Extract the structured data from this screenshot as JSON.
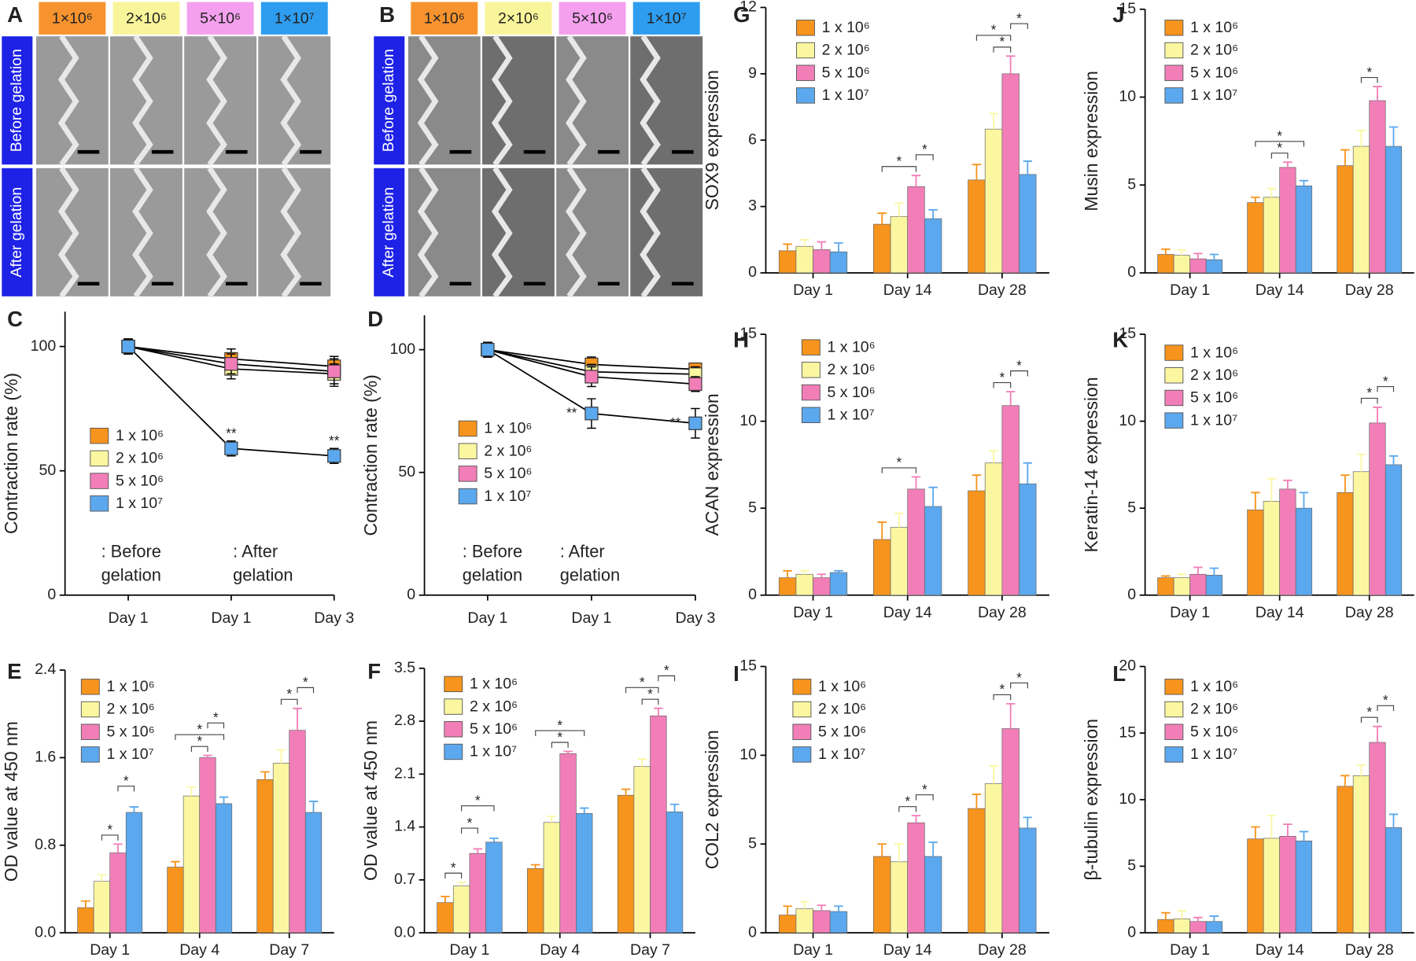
{
  "photo_panels": [
    {
      "panel": "A",
      "columns": [
        {
          "label": "1×10⁶",
          "color": "#f7932e"
        },
        {
          "label": "2×10⁶",
          "color": "#f9f59a"
        },
        {
          "label": "5×10⁶",
          "color": "#f4a0ee"
        },
        {
          "label": "1×10⁷",
          "color": "#2e9df0"
        }
      ],
      "row_labels": [
        "Before gelation",
        "After gelation"
      ]
    },
    {
      "panel": "B",
      "columns": [
        {
          "label": "1×10⁶",
          "color": "#f7932e"
        },
        {
          "label": "2×10⁶",
          "color": "#f9f59a"
        },
        {
          "label": "5×10⁶",
          "color": "#f4a0ee"
        },
        {
          "label": "1×10⁷",
          "color": "#2e9df0"
        }
      ],
      "row_labels": [
        "Before gelation",
        "After gelation"
      ]
    }
  ],
  "chart_data": [
    {
      "type": "line",
      "panel": "C",
      "y_label": "Contraction rate (%)",
      "categories": [
        "Day 1",
        "Day 1",
        "Day 3"
      ],
      "ylim": [
        0,
        114
      ],
      "yticks": [
        0,
        50,
        100
      ],
      "series": [
        {
          "name": "1 x 10⁶",
          "color": "#f7941d",
          "values": [
            100,
            95,
            92
          ],
          "errors": [
            3,
            4,
            3
          ]
        },
        {
          "name": "2 x 10⁶",
          "color": "#fbf7a1",
          "values": [
            100,
            91,
            89
          ],
          "errors": [
            3,
            4,
            4
          ]
        },
        {
          "name": "5 x 10⁶",
          "color": "#f27eb8",
          "values": [
            100,
            93,
            90
          ],
          "errors": [
            3,
            4,
            6
          ]
        },
        {
          "name": "1 x 10⁷",
          "color": "#5ba8ee",
          "values": [
            100,
            59,
            56
          ],
          "errors": [
            3,
            3,
            3
          ]
        }
      ],
      "markers": [
        "**",
        "**"
      ],
      "annotations": [
        ": Before",
        "gelation",
        ": After",
        "gelation"
      ]
    },
    {
      "type": "line",
      "panel": "D",
      "y_label": "Contraction rate (%)",
      "categories": [
        "Day 1",
        "Day 1",
        "Day 3"
      ],
      "ylim": [
        0,
        114
      ],
      "yticks": [
        0,
        50,
        100
      ],
      "series": [
        {
          "name": "1 x 10⁶",
          "color": "#f7941d",
          "values": [
            100,
            94,
            92
          ],
          "errors": [
            3,
            3,
            2
          ]
        },
        {
          "name": "2 x 10⁶",
          "color": "#fbf7a1",
          "values": [
            100,
            91,
            90
          ],
          "errors": [
            3,
            3,
            3
          ]
        },
        {
          "name": "5 x 10⁶",
          "color": "#f27eb8",
          "values": [
            100,
            89,
            86
          ],
          "errors": [
            3,
            4,
            3
          ]
        },
        {
          "name": "1 x 10⁷",
          "color": "#5ba8ee",
          "values": [
            100,
            74,
            70
          ],
          "errors": [
            3,
            6,
            6
          ]
        }
      ],
      "markers": [
        "**",
        "**"
      ],
      "annotations": [
        ": Before",
        "gelation",
        ": After",
        "gelation"
      ]
    },
    {
      "type": "bar",
      "panel": "E",
      "y_label": "OD value at 450 nm",
      "categories": [
        "Day 1",
        "Day 4",
        "Day 7"
      ],
      "ylim": [
        0,
        2.4
      ],
      "yticks": [
        {
          "value": 0,
          "label": "0.0"
        },
        0.8,
        1.6,
        2.4
      ],
      "series": [
        {
          "name": "1 x 10⁶",
          "color": "#f7941d",
          "values": [
            0.23,
            0.6,
            1.4
          ],
          "errors": [
            0.06,
            0.05,
            0.07
          ]
        },
        {
          "name": "2 x 10⁶",
          "color": "#fbf7a1",
          "values": [
            0.47,
            1.25,
            1.55
          ],
          "errors": [
            0.06,
            0.08,
            0.12
          ]
        },
        {
          "name": "5 x 10⁶",
          "color": "#f27eb8",
          "values": [
            0.73,
            1.6,
            1.85
          ],
          "errors": [
            0.08,
            0.02,
            0.2
          ]
        },
        {
          "name": "1 x 10⁷",
          "color": "#5ba8ee",
          "values": [
            1.1,
            1.18,
            1.1
          ],
          "errors": [
            0.05,
            0.06,
            0.1
          ]
        }
      ],
      "significance": [
        "*",
        "*",
        "*",
        "*",
        "*",
        "*",
        "*"
      ]
    },
    {
      "type": "bar",
      "panel": "F",
      "y_label": "OD value at 450 nm",
      "categories": [
        "Day 1",
        "Day 4",
        "Day 7"
      ],
      "ylim": [
        0,
        3.5
      ],
      "yticks": [
        {
          "value": 0,
          "label": "0.0"
        },
        0.7,
        1.4,
        2.1,
        2.8,
        3.5
      ],
      "series": [
        {
          "name": "1 x 10⁶",
          "color": "#f7941d",
          "values": [
            0.4,
            0.85,
            1.82
          ],
          "errors": [
            0.08,
            0.05,
            0.08
          ]
        },
        {
          "name": "2 x 10⁶",
          "color": "#fbf7a1",
          "values": [
            0.62,
            1.46,
            2.2
          ],
          "errors": [
            0.05,
            0.08,
            0.1
          ]
        },
        {
          "name": "5 x 10⁶",
          "color": "#f27eb8",
          "values": [
            1.05,
            2.37,
            2.87
          ],
          "errors": [
            0.06,
            0.03,
            0.1
          ]
        },
        {
          "name": "1 x 10⁷",
          "color": "#5ba8ee",
          "values": [
            1.2,
            1.58,
            1.6
          ],
          "errors": [
            0.05,
            0.07,
            0.1
          ]
        }
      ],
      "significance": [
        "*",
        "*",
        "*",
        "*",
        "*",
        "*",
        "*",
        "*"
      ]
    },
    {
      "type": "bar",
      "panel": "G",
      "y_label": "SOX9 expression",
      "categories": [
        "Day 1",
        "Day 14",
        "Day 28"
      ],
      "ylim": [
        0,
        12
      ],
      "yticks": [
        0,
        3,
        6,
        9,
        12
      ],
      "series": [
        {
          "name": "1 x 10⁶",
          "color": "#f7941d",
          "values": [
            1.0,
            2.2,
            4.2
          ],
          "errors": [
            0.3,
            0.5,
            0.7
          ]
        },
        {
          "name": "2 x 10⁶",
          "color": "#fbf7a1",
          "values": [
            1.2,
            2.55,
            6.5
          ],
          "errors": [
            0.3,
            0.6,
            0.7
          ]
        },
        {
          "name": "5 x 10⁶",
          "color": "#f27eb8",
          "values": [
            1.05,
            3.9,
            9.0
          ],
          "errors": [
            0.35,
            0.5,
            0.8
          ]
        },
        {
          "name": "1 x 10⁷",
          "color": "#5ba8ee",
          "values": [
            0.95,
            2.45,
            4.45
          ],
          "errors": [
            0.4,
            0.4,
            0.6
          ]
        }
      ],
      "significance": [
        "*",
        "*",
        "*",
        "*",
        "*"
      ]
    },
    {
      "type": "bar",
      "panel": "H",
      "y_label": "ACAN expression",
      "categories": [
        "Day 1",
        "Day 14",
        "Day 28"
      ],
      "ylim": [
        0,
        15
      ],
      "yticks": [
        0,
        5,
        10,
        15
      ],
      "series": [
        {
          "name": "1 x 10⁶",
          "color": "#f7941d",
          "values": [
            1.0,
            3.2,
            6.0
          ],
          "errors": [
            0.4,
            1.0,
            0.9
          ]
        },
        {
          "name": "2 x 10⁶",
          "color": "#fbf7a1",
          "values": [
            1.2,
            3.9,
            7.6
          ],
          "errors": [
            0.2,
            0.8,
            0.7
          ]
        },
        {
          "name": "5 x 10⁶",
          "color": "#f27eb8",
          "values": [
            1.0,
            6.1,
            10.9
          ],
          "errors": [
            0.2,
            0.7,
            0.8
          ]
        },
        {
          "name": "1 x 10⁷",
          "color": "#5ba8ee",
          "values": [
            1.3,
            5.1,
            6.4
          ],
          "errors": [
            0.1,
            1.1,
            1.2
          ]
        }
      ],
      "significance": [
        "*",
        "*",
        "*"
      ]
    },
    {
      "type": "bar",
      "panel": "I",
      "y_label": "COL2 expression",
      "categories": [
        "Day 1",
        "Day 14",
        "Day 28"
      ],
      "ylim": [
        0,
        15
      ],
      "yticks": [
        0,
        5,
        10,
        15
      ],
      "series": [
        {
          "name": "1 x 10⁶",
          "color": "#f7941d",
          "values": [
            1.0,
            4.3,
            7.0
          ],
          "errors": [
            0.5,
            0.7,
            0.8
          ]
        },
        {
          "name": "2 x 10⁶",
          "color": "#fbf7a1",
          "values": [
            1.35,
            4.0,
            8.4
          ],
          "errors": [
            0.4,
            1.0,
            1.0
          ]
        },
        {
          "name": "5 x 10⁶",
          "color": "#f27eb8",
          "values": [
            1.25,
            6.2,
            11.5
          ],
          "errors": [
            0.3,
            0.4,
            1.4
          ]
        },
        {
          "name": "1 x 10⁷",
          "color": "#5ba8ee",
          "values": [
            1.2,
            4.3,
            5.9
          ],
          "errors": [
            0.3,
            0.8,
            0.6
          ]
        }
      ],
      "significance": [
        "*",
        "*",
        "*",
        "*"
      ]
    },
    {
      "type": "bar",
      "panel": "J",
      "y_label": "Musin expression",
      "categories": [
        "Day 1",
        "Day 14",
        "Day 28"
      ],
      "ylim": [
        0,
        15
      ],
      "yticks": [
        0,
        5,
        10,
        15
      ],
      "series": [
        {
          "name": "1 x 10⁶",
          "color": "#f7941d",
          "values": [
            1.05,
            4.0,
            6.1
          ],
          "errors": [
            0.3,
            0.3,
            0.9
          ]
        },
        {
          "name": "2 x 10⁶",
          "color": "#fbf7a1",
          "values": [
            1.0,
            4.3,
            7.2
          ],
          "errors": [
            0.3,
            0.5,
            0.9
          ]
        },
        {
          "name": "5 x 10⁶",
          "color": "#f27eb8",
          "values": [
            0.8,
            6.0,
            9.8
          ],
          "errors": [
            0.3,
            0.3,
            0.8
          ]
        },
        {
          "name": "1 x 10⁷",
          "color": "#5ba8ee",
          "values": [
            0.75,
            4.95,
            7.2
          ],
          "errors": [
            0.3,
            0.3,
            1.1
          ]
        }
      ],
      "significance": [
        "*",
        "*",
        "*"
      ]
    },
    {
      "type": "bar",
      "panel": "K",
      "y_label": "Keratin-14 expression",
      "categories": [
        "Day 1",
        "Day 14",
        "Day 28"
      ],
      "ylim": [
        0,
        15
      ],
      "yticks": [
        0,
        5,
        10,
        15
      ],
      "series": [
        {
          "name": "1 x 10⁶",
          "color": "#f7941d",
          "values": [
            1.0,
            4.9,
            5.9
          ],
          "errors": [
            0.1,
            1.0,
            1.0
          ]
        },
        {
          "name": "2 x 10⁶",
          "color": "#fbf7a1",
          "values": [
            1.0,
            5.4,
            7.1
          ],
          "errors": [
            0.2,
            1.3,
            1.0
          ]
        },
        {
          "name": "5 x 10⁶",
          "color": "#f27eb8",
          "values": [
            1.2,
            6.1,
            9.9
          ],
          "errors": [
            0.4,
            0.5,
            0.9
          ]
        },
        {
          "name": "1 x 10⁷",
          "color": "#5ba8ee",
          "values": [
            1.15,
            5.0,
            7.5
          ],
          "errors": [
            0.4,
            0.9,
            0.5
          ]
        }
      ],
      "significance": [
        "*",
        "*"
      ]
    },
    {
      "type": "bar",
      "panel": "L",
      "y_label": "β-tubulin expression",
      "categories": [
        "Day 1",
        "Day 14",
        "Day 28"
      ],
      "ylim": [
        0,
        20
      ],
      "yticks": [
        0,
        5,
        10,
        15,
        20
      ],
      "series": [
        {
          "name": "1 x 10⁶",
          "color": "#f7941d",
          "values": [
            1.0,
            7.05,
            11.0
          ],
          "errors": [
            0.5,
            0.9,
            0.8
          ]
        },
        {
          "name": "2 x 10⁶",
          "color": "#fbf7a1",
          "values": [
            1.05,
            7.1,
            11.8
          ],
          "errors": [
            0.6,
            1.7,
            0.8
          ]
        },
        {
          "name": "5 x 10⁶",
          "color": "#f27eb8",
          "values": [
            0.85,
            7.25,
            14.3
          ],
          "errors": [
            0.3,
            0.9,
            1.2
          ]
        },
        {
          "name": "1 x 10⁷",
          "color": "#5ba8ee",
          "values": [
            0.85,
            6.9,
            7.9
          ],
          "errors": [
            0.4,
            0.7,
            1.0
          ]
        }
      ],
      "significance": [
        "*",
        "*"
      ]
    }
  ]
}
